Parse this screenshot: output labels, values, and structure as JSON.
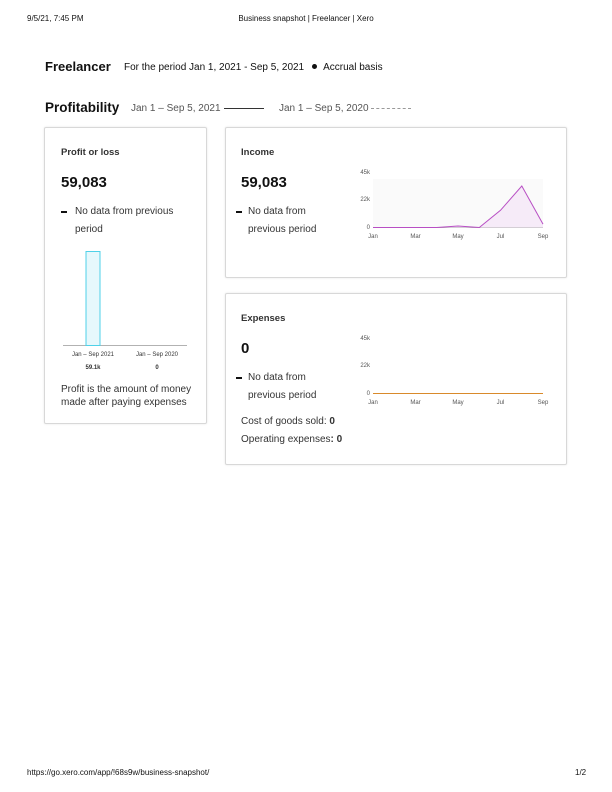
{
  "print_header": {
    "datetime": "9/5/21, 7:45 PM",
    "page_title": "Business snapshot | Freelancer | Xero"
  },
  "print_footer": {
    "url": "https://go.xero.com/app/!68s9w/business-snapshot/",
    "page": "1/2"
  },
  "header": {
    "org_name": "Freelancer",
    "period": "For the period Jan 1, 2021 - Sep 5, 2021",
    "basis": "Accrual basis"
  },
  "section": {
    "title": "Profitability",
    "legend_current": "Jan 1 – Sep 5, 2021",
    "legend_previous": "Jan 1 – Sep 5, 2020"
  },
  "profit_card": {
    "title": "Profit or loss",
    "value": "59,083",
    "nodata": "No data from previous period",
    "footnote": "Profit is the amount of money made after paying expenses"
  },
  "income_card": {
    "title": "Income",
    "value": "59,083",
    "nodata": "No data from previous period"
  },
  "expenses_card": {
    "title": "Expenses",
    "value": "0",
    "nodata": "No data from previous period",
    "cogs_label": "Cost of goods sold: ",
    "cogs_value": "0",
    "opex_label": "Operating expenses",
    "opex_value": "0"
  },
  "colors": {
    "profit_bar_fill": "#e6f8fc",
    "profit_bar_stroke": "#4fd1e8",
    "income_line": "#b84fc4",
    "income_fill": "#f6ebf8",
    "expenses_line": "#d98a2b"
  },
  "chart_data": [
    {
      "type": "bar",
      "categories": [
        "Jan – Sep 2021",
        "Jan – Sep 2020"
      ],
      "series": [
        {
          "values": [
            59083,
            0
          ]
        }
      ],
      "data_labels": [
        "59.1k",
        "0"
      ],
      "title": "",
      "xlabel": "",
      "ylabel": "",
      "grid": false
    },
    {
      "type": "area",
      "x": [
        "Jan",
        "Feb",
        "Mar",
        "Apr",
        "May",
        "Jun",
        "Jul",
        "Aug",
        "Sep"
      ],
      "tick_labels_x": [
        "Jan",
        "Mar",
        "May",
        "Jul",
        "Sep"
      ],
      "tick_labels_y": [
        "0",
        "22k",
        "45k"
      ],
      "series": [
        {
          "values": [
            0,
            0,
            0,
            0,
            1400,
            0,
            16000,
            38500,
            3200
          ]
        }
      ],
      "ylim": [
        0,
        45000
      ],
      "grid": false
    },
    {
      "type": "line",
      "x": [
        "Jan",
        "Feb",
        "Mar",
        "Apr",
        "May",
        "Jun",
        "Jul",
        "Aug",
        "Sep"
      ],
      "tick_labels_x": [
        "Jan",
        "Mar",
        "May",
        "Jul",
        "Sep"
      ],
      "tick_labels_y": [
        "0",
        "22k",
        "45k"
      ],
      "series": [
        {
          "values": [
            0,
            0,
            0,
            0,
            0,
            0,
            0,
            0,
            0
          ]
        }
      ],
      "ylim": [
        0,
        45000
      ],
      "grid": false
    }
  ]
}
